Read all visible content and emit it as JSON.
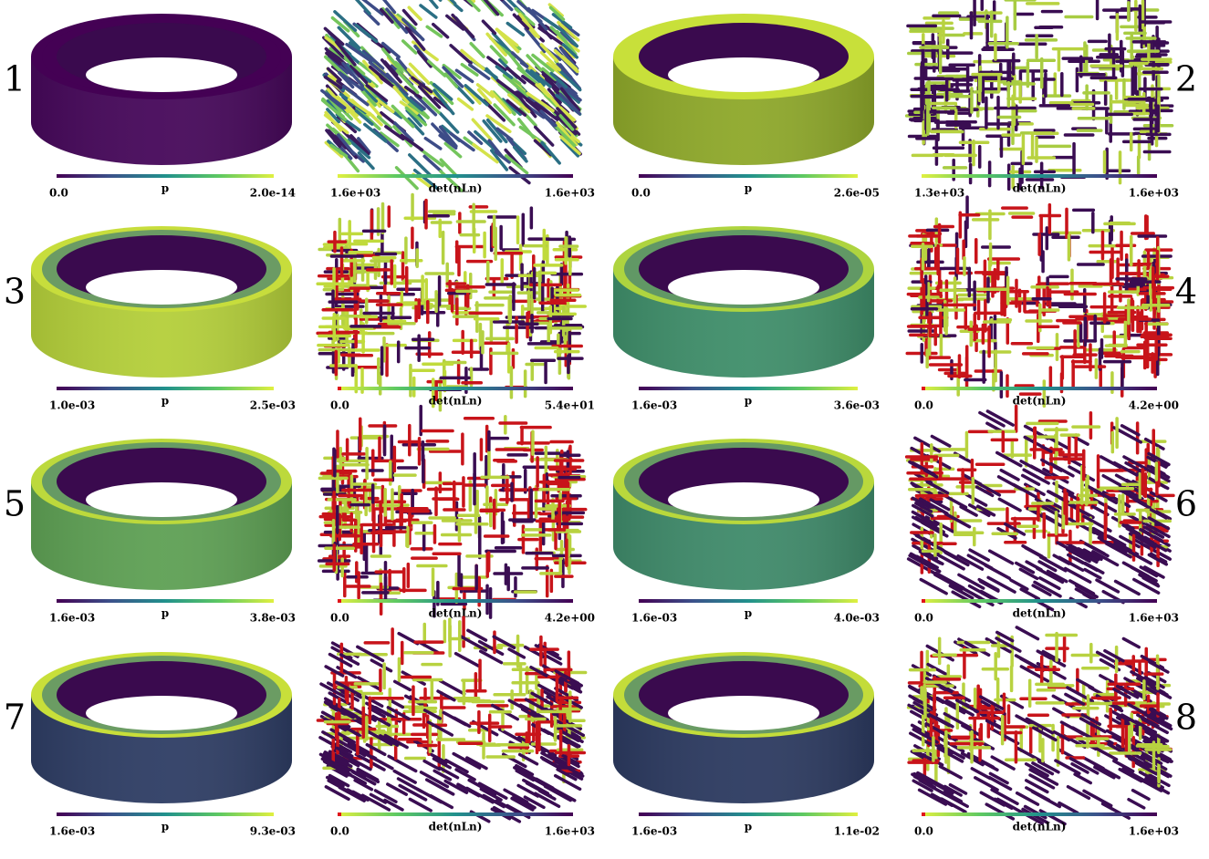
{
  "panels": [
    {
      "number": "1",
      "pressure": {
        "min": "0.0",
        "label": "p",
        "max": "2.0e-14"
      },
      "det": {
        "min": "1.6e+03",
        "label": "det(nLn)",
        "max": "1.6e+03"
      }
    },
    {
      "number": "2",
      "pressure": {
        "min": "0.0",
        "label": "p",
        "max": "2.6e-05"
      },
      "det": {
        "min": "1.3e+03",
        "label": "det(nLn)",
        "max": "1.6e+03"
      }
    },
    {
      "number": "3",
      "pressure": {
        "min": "1.0e-03",
        "label": "p",
        "max": "2.5e-03"
      },
      "det": {
        "min": "0.0",
        "label": "det(nLn)",
        "max": "5.4e+01"
      }
    },
    {
      "number": "4",
      "pressure": {
        "min": "1.6e-03",
        "label": "p",
        "max": "3.6e-03"
      },
      "det": {
        "min": "0.0",
        "label": "det(nLn)",
        "max": "4.2e+00"
      }
    },
    {
      "number": "5",
      "pressure": {
        "min": "1.6e-03",
        "label": "p",
        "max": "3.8e-03"
      },
      "det": {
        "min": "0.0",
        "label": "det(nLn)",
        "max": "4.2e+00"
      }
    },
    {
      "number": "6",
      "pressure": {
        "min": "1.6e-03",
        "label": "p",
        "max": "4.0e-03"
      },
      "det": {
        "min": "0.0",
        "label": "det(nLn)",
        "max": "1.6e+03"
      }
    },
    {
      "number": "7",
      "pressure": {
        "min": "1.6e-03",
        "label": "p",
        "max": "9.3e-03"
      },
      "det": {
        "min": "0.0",
        "label": "det(nLn)",
        "max": "1.6e+03"
      }
    },
    {
      "number": "8",
      "pressure": {
        "min": "1.6e-03",
        "label": "p",
        "max": "1.1e-02"
      },
      "det": {
        "min": "0.0",
        "label": "det(nLn)",
        "max": "1.6e+03"
      }
    }
  ]
}
